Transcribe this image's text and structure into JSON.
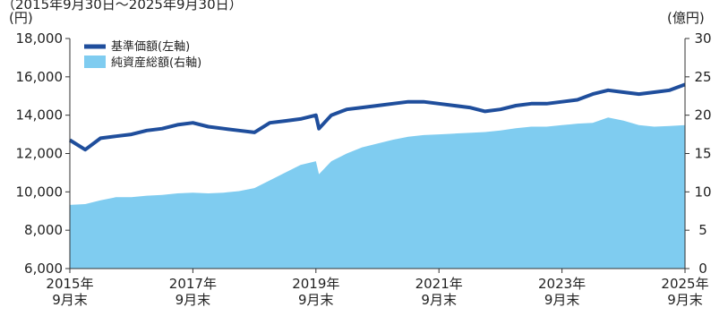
{
  "header": {
    "period": "（2015年9月30日～2025年9月30日）"
  },
  "chart_data": {
    "type": "line",
    "title": "",
    "left_axis": {
      "unit": "(円)",
      "ylim": [
        6000,
        18000
      ],
      "ticks": [
        "6,000",
        "8,000",
        "10,000",
        "12,000",
        "14,000",
        "16,000",
        "18,000"
      ]
    },
    "right_axis": {
      "unit": "(億円)",
      "ylim": [
        0,
        30
      ],
      "ticks": [
        "0",
        "5",
        "10",
        "15",
        "20",
        "25",
        "30"
      ]
    },
    "x_labels": [
      {
        "year": "2015年",
        "month": "9月末"
      },
      {
        "year": "2017年",
        "month": "9月末"
      },
      {
        "year": "2019年",
        "month": "9月末"
      },
      {
        "year": "2021年",
        "month": "9月末"
      },
      {
        "year": "2023年",
        "month": "9月末"
      },
      {
        "year": "2025年",
        "month": "9月末"
      }
    ],
    "x": [
      2015.75,
      2016.0,
      2016.25,
      2016.5,
      2016.75,
      2017.0,
      2017.25,
      2017.5,
      2017.75,
      2018.0,
      2018.25,
      2018.5,
      2018.75,
      2019.0,
      2019.25,
      2019.5,
      2019.75,
      2019.8,
      2020.0,
      2020.25,
      2020.5,
      2020.75,
      2021.0,
      2021.25,
      2021.5,
      2021.75,
      2022.0,
      2022.25,
      2022.5,
      2022.75,
      2023.0,
      2023.25,
      2023.5,
      2023.75,
      2024.0,
      2024.25,
      2024.5,
      2024.75,
      2025.0,
      2025.25,
      2025.5,
      2025.75
    ],
    "series": [
      {
        "name": "基準価額(左軸)",
        "axis": "left",
        "color": "#1f4e9c",
        "values": [
          12700,
          12200,
          12800,
          12900,
          13000,
          13200,
          13300,
          13500,
          13600,
          13400,
          13300,
          13200,
          13100,
          13600,
          13700,
          13800,
          14000,
          13300,
          14000,
          14300,
          14400,
          14500,
          14600,
          14700,
          14700,
          14600,
          14500,
          14400,
          14200,
          14300,
          14500,
          14600,
          14600,
          14700,
          14800,
          15100,
          15300,
          15200,
          15100,
          15200,
          15300,
          15600
        ]
      },
      {
        "name": "純資産総額(右軸)",
        "axis": "right",
        "color": "#7fccf0",
        "values": [
          8.3,
          8.4,
          8.9,
          9.3,
          9.3,
          9.5,
          9.6,
          9.8,
          9.9,
          9.8,
          9.9,
          10.1,
          10.5,
          11.5,
          12.5,
          13.5,
          14.0,
          12.3,
          14.0,
          15.0,
          15.8,
          16.3,
          16.8,
          17.2,
          17.4,
          17.5,
          17.6,
          17.7,
          17.8,
          18.0,
          18.3,
          18.5,
          18.5,
          18.7,
          18.9,
          19.0,
          19.7,
          19.3,
          18.7,
          18.5,
          18.6,
          18.7
        ]
      }
    ]
  }
}
